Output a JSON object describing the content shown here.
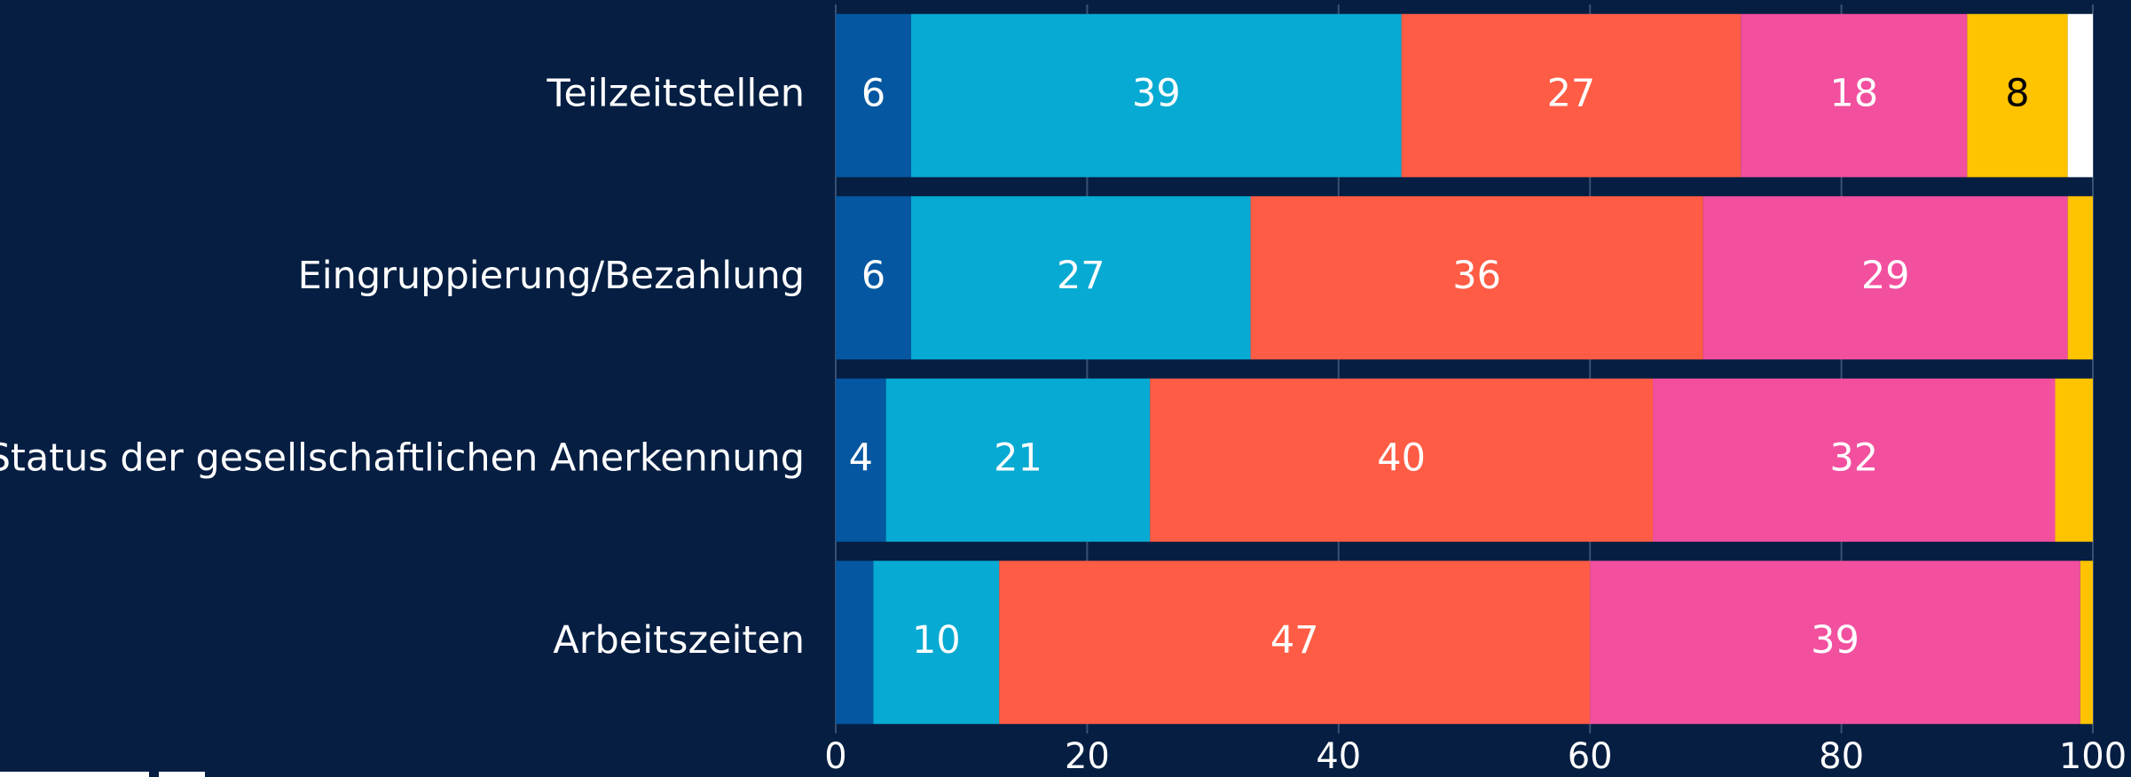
{
  "chart_data": {
    "type": "stacked-bar",
    "categories": [
      "Teilzeitstellen",
      "Eingruppierung/Bezahlung",
      "Status der gesellschaftlichen Anerkennung",
      "Arbeitszeiten"
    ],
    "series": [
      {
        "color": "#0457a0",
        "label_color": "#ffffff",
        "values": [
          6,
          6,
          4,
          3
        ],
        "value_labels": [
          "6",
          "6",
          "4",
          null
        ]
      },
      {
        "color": "#07aad2",
        "label_color": "#ffffff",
        "values": [
          39,
          27,
          21,
          10
        ]
      },
      {
        "color": "#ff5c45",
        "label_color": "#ffffff",
        "values": [
          27,
          36,
          40,
          47
        ]
      },
      {
        "color": "#f24f9f",
        "label_color": "#ffffff",
        "values": [
          18,
          29,
          32,
          39
        ]
      },
      {
        "color": "#ffc300",
        "label_color": "#000000",
        "values": [
          8,
          2,
          3,
          1
        ],
        "value_labels": [
          "8",
          null,
          null,
          null
        ]
      },
      {
        "color": "#ffffff",
        "label_color": "#000000",
        "values": [
          2,
          0,
          0,
          0
        ],
        "value_labels": [
          null,
          null,
          null,
          null
        ]
      }
    ],
    "xlim": [
      0,
      100
    ],
    "xticks": [
      0,
      20,
      40,
      60,
      80,
      100
    ],
    "grid": true
  }
}
